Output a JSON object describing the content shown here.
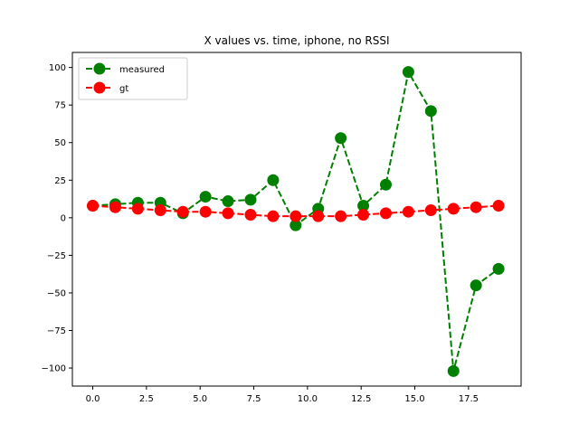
{
  "chart_data": {
    "type": "line",
    "title": "X values vs. time, iphone, no RSSI",
    "xlabel": "",
    "ylabel": "",
    "xlim": [
      -0.95,
      19.95
    ],
    "ylim": [
      -112,
      110
    ],
    "x_ticks": [
      "0.0",
      "2.5",
      "5.0",
      "7.5",
      "10.0",
      "12.5",
      "15.0",
      "17.5"
    ],
    "y_ticks": [
      "100",
      "75",
      "50",
      "25",
      "0",
      "−25",
      "−50",
      "−75",
      "−100"
    ],
    "x_tick_values": [
      0,
      2.5,
      5,
      7.5,
      10,
      12.5,
      15,
      17.5
    ],
    "y_tick_values": [
      100,
      75,
      50,
      25,
      0,
      -25,
      -50,
      -75,
      -100
    ],
    "grid": false,
    "legend_position": "top-left",
    "series": [
      {
        "name": "measured",
        "color": "#008000",
        "x": [
          0,
          1.05,
          2.1,
          3.15,
          4.2,
          5.25,
          6.3,
          7.35,
          8.4,
          9.45,
          10.5,
          11.55,
          12.6,
          13.65,
          14.7,
          15.75,
          16.8,
          17.85,
          18.9
        ],
        "y": [
          8,
          9,
          10,
          10,
          3,
          14,
          11,
          12,
          25,
          -5,
          6,
          53,
          8,
          22,
          97,
          71,
          -102,
          -45,
          -34
        ]
      },
      {
        "name": "gt",
        "color": "#ff0000",
        "x": [
          0,
          1.05,
          2.1,
          3.15,
          4.2,
          5.25,
          6.3,
          7.35,
          8.4,
          9.45,
          10.5,
          11.55,
          12.6,
          13.65,
          14.7,
          15.75,
          16.8,
          17.85,
          18.9
        ],
        "y": [
          8,
          7,
          6,
          5,
          4,
          4,
          3,
          2,
          1,
          1,
          1,
          1,
          2,
          3,
          4,
          5,
          6,
          7,
          8
        ]
      }
    ]
  }
}
